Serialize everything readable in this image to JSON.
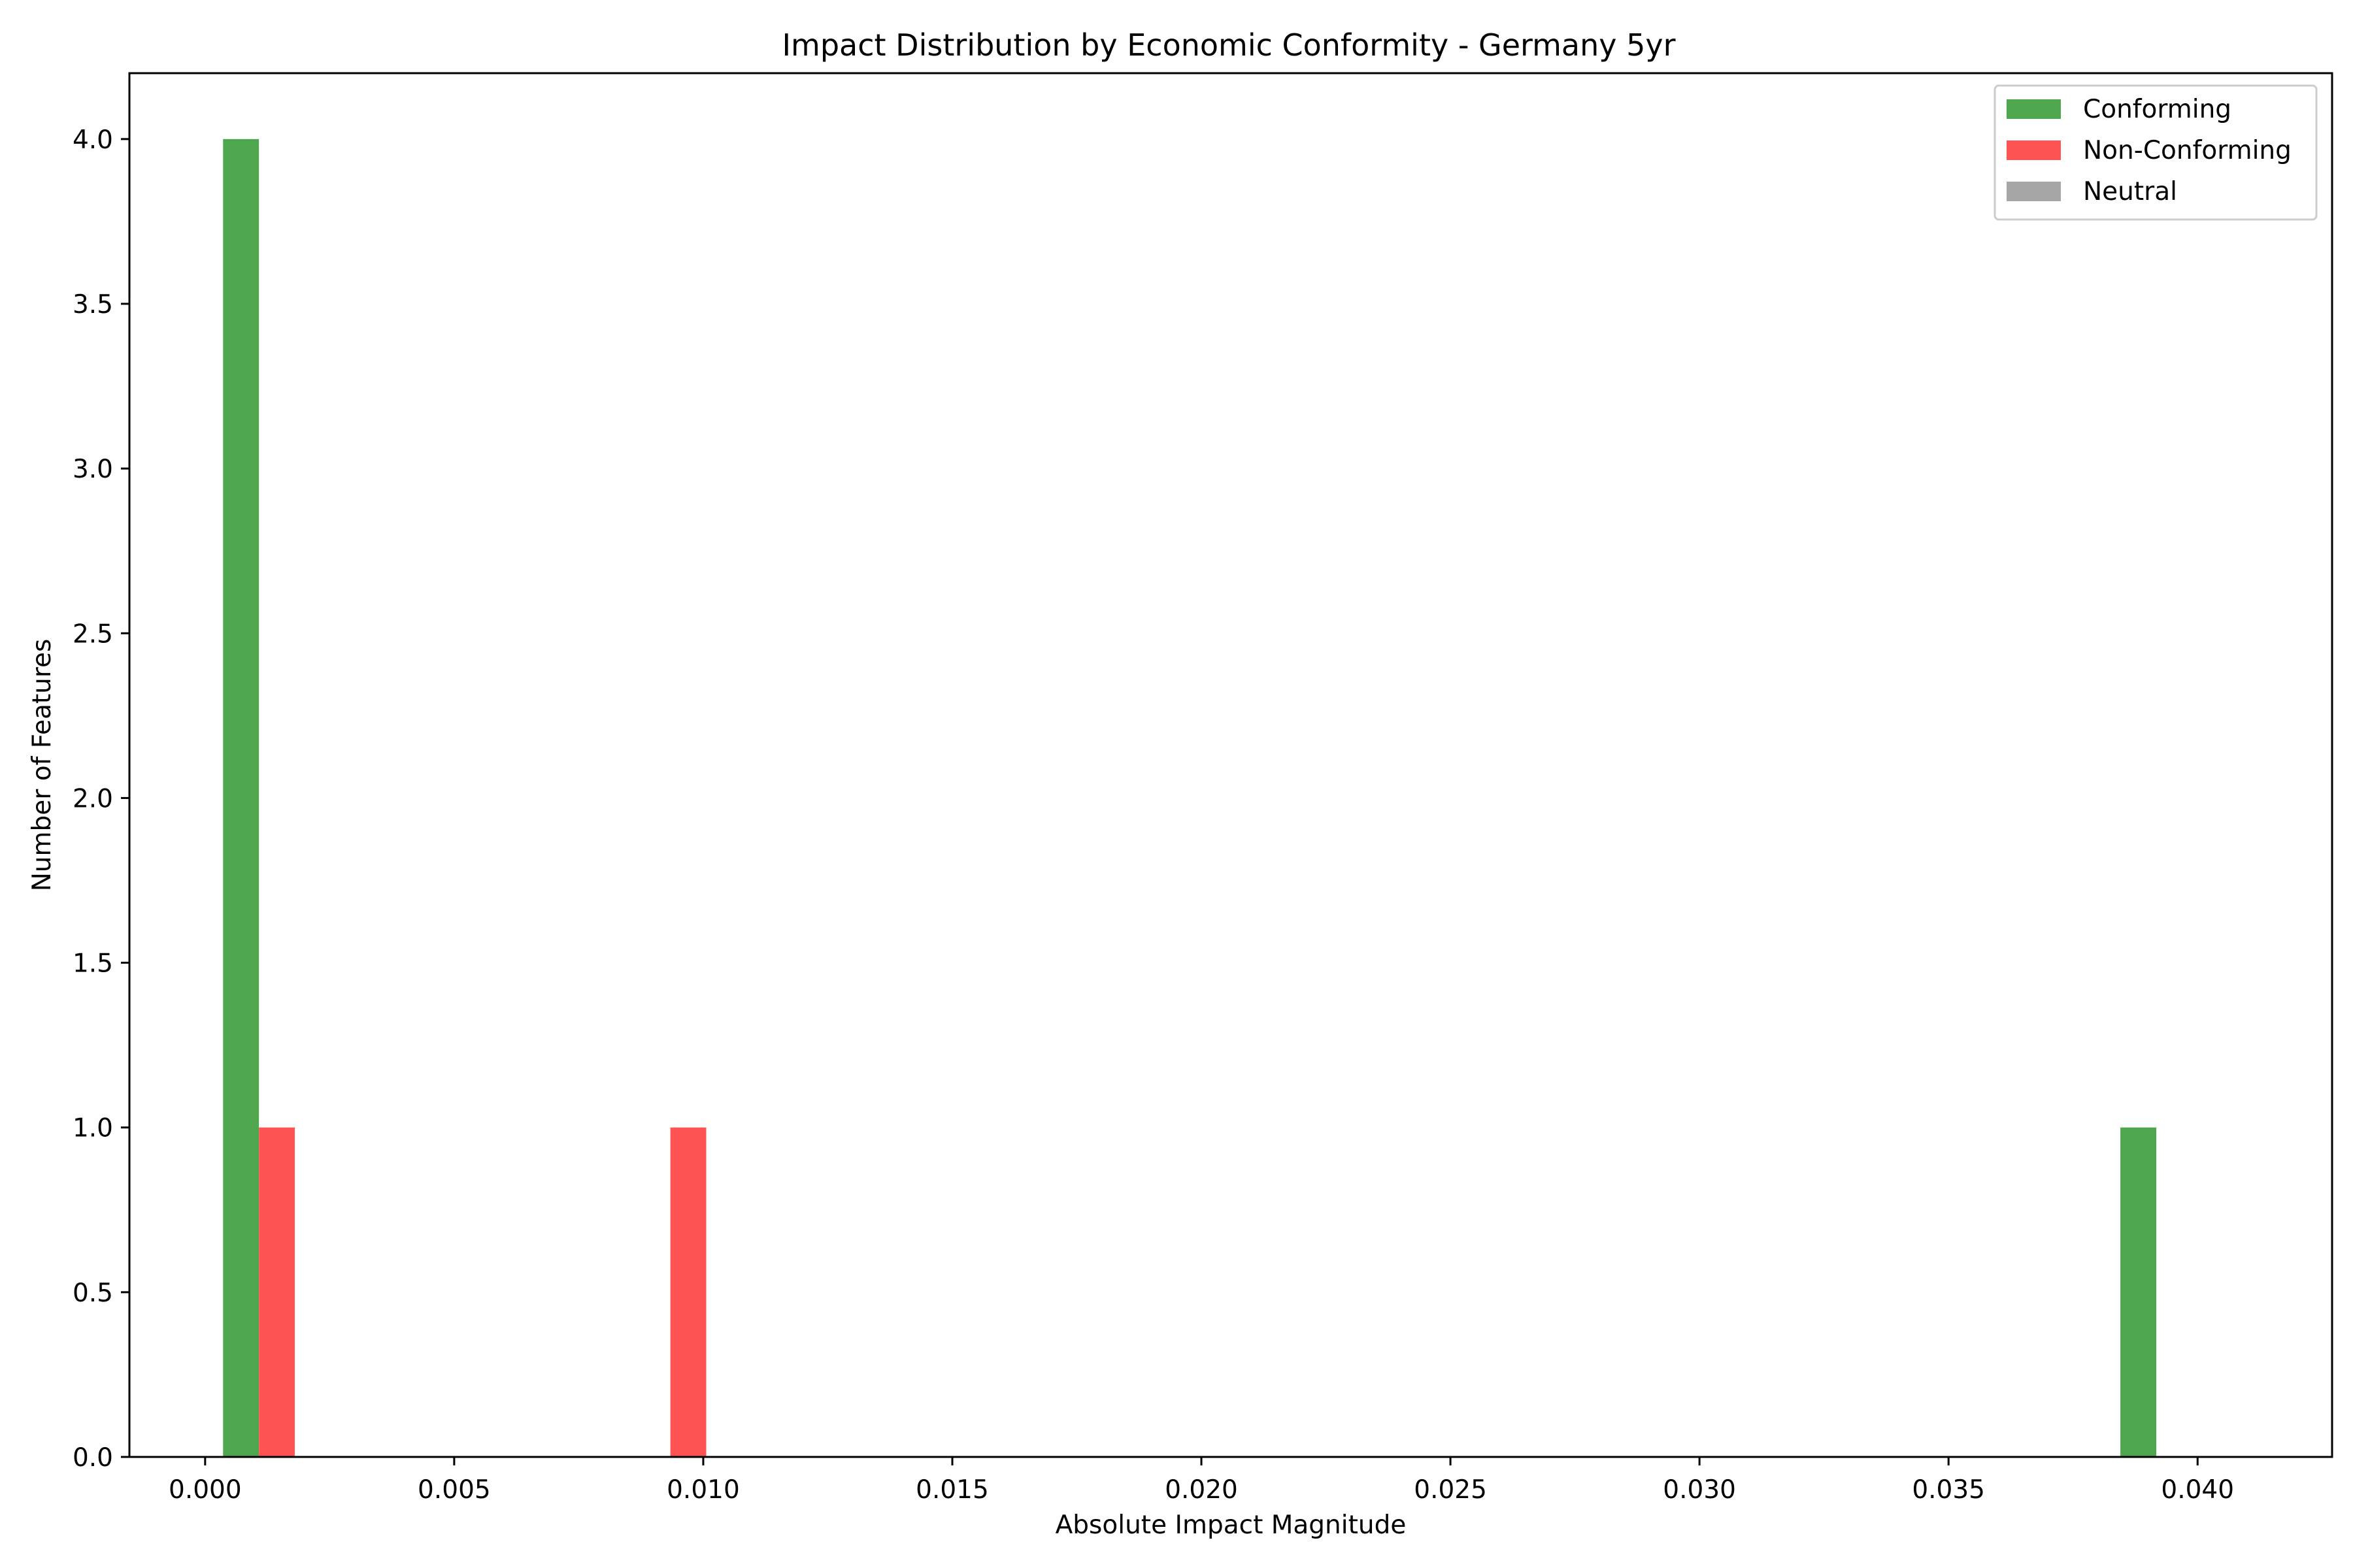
{
  "chart_data": {
    "type": "bar",
    "title": "Impact Distribution by Economic Conformity - Germany 5yr",
    "xlabel": "Absolute Impact Magnitude",
    "ylabel": "Number of Features",
    "xlim": [
      -0.00152,
      0.0427
    ],
    "ylim": [
      0,
      4.2
    ],
    "x_ticks": [
      "0.000",
      "0.005",
      "0.010",
      "0.015",
      "0.020",
      "0.025",
      "0.030",
      "0.035",
      "0.040"
    ],
    "x_tick_values": [
      0,
      0.005,
      0.01,
      0.015,
      0.02,
      0.025,
      0.03,
      0.035,
      0.04
    ],
    "y_ticks": [
      "0.0",
      "0.5",
      "1.0",
      "1.5",
      "2.0",
      "2.5",
      "3.0",
      "3.5",
      "4.0"
    ],
    "y_tick_values": [
      0,
      0.5,
      1,
      1.5,
      2,
      2.5,
      3,
      3.5,
      4
    ],
    "grid": false,
    "legend_position": "top-right",
    "series": [
      {
        "name": "Conforming",
        "color": "#4ea64e",
        "bars": [
          {
            "x0": 0.00036,
            "x1": 0.00108,
            "count": 4
          },
          {
            "x0": 0.03845,
            "x1": 0.03917,
            "count": 1
          }
        ]
      },
      {
        "name": "Non-Conforming",
        "color": "#ff5252",
        "bars": [
          {
            "x0": 0.00108,
            "x1": 0.0018,
            "count": 1
          },
          {
            "x0": 0.00934,
            "x1": 0.01006,
            "count": 1
          }
        ]
      },
      {
        "name": "Neutral",
        "color": "#a6a6a6",
        "bars": []
      }
    ]
  }
}
